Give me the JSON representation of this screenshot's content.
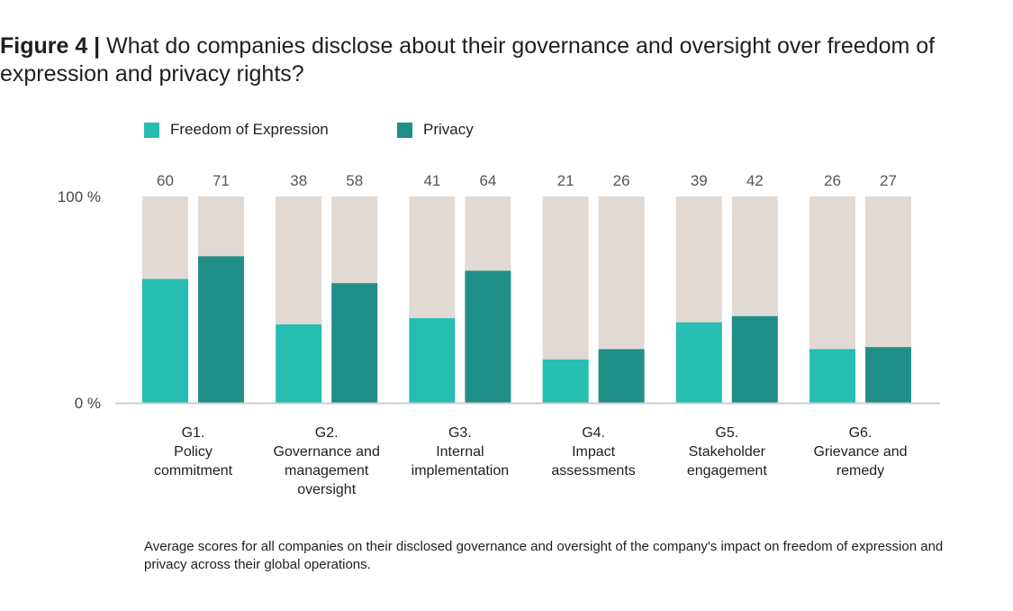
{
  "title": {
    "figure": "Figure 4 |",
    "text": "What do companies disclose about their governance and oversight over freedom of expression and privacy rights?"
  },
  "note": "Average scores for all companies on their disclosed governance and oversight of the company's impact on freedom of expression and privacy across their global operations.",
  "colors": {
    "freedom": "#26bdb3",
    "privacy": "#208f87",
    "background_bar": "#e1d9d4",
    "axis": "#cccccc"
  },
  "chart_data": {
    "type": "bar",
    "categories": [
      [
        "G1.",
        "Policy",
        "commitment"
      ],
      [
        "G2.",
        "Governance and",
        "management",
        "oversight"
      ],
      [
        "G3.",
        "Internal",
        "implementation"
      ],
      [
        "G4.",
        "Impact",
        "assessments"
      ],
      [
        "G5.",
        "Stakeholder",
        "engagement"
      ],
      [
        "G6.",
        "Grievance and",
        "remedy"
      ]
    ],
    "series": [
      {
        "name": "Freedom of Expression",
        "values": [
          60,
          38,
          41,
          21,
          39,
          26
        ]
      },
      {
        "name": "Privacy",
        "values": [
          71,
          58,
          64,
          26,
          42,
          27
        ]
      }
    ],
    "ylim": [
      0,
      100
    ],
    "yticks": [
      "100 %",
      "0 %"
    ],
    "legend": "top-left",
    "grid": false,
    "data_labels": "above"
  }
}
